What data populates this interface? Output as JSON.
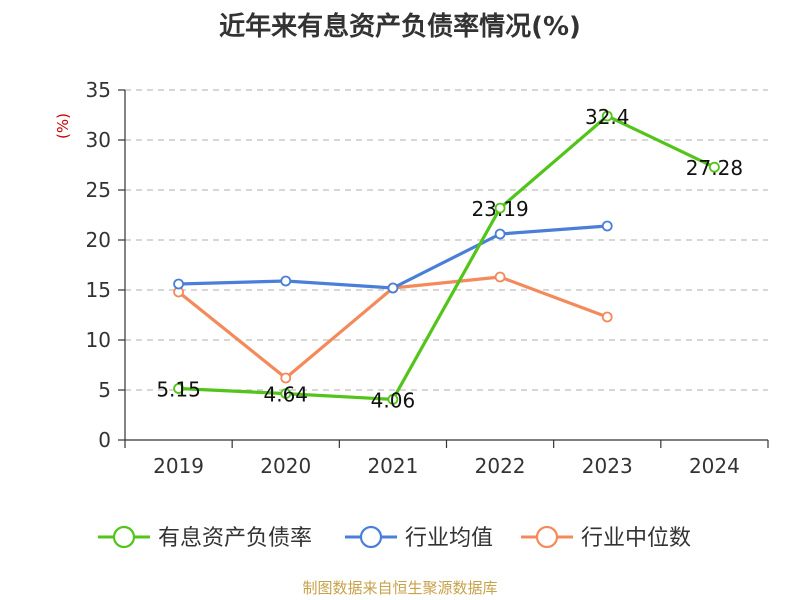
{
  "title": "近年来有息资产负债率情况(%)",
  "source": "制图数据来自恒生聚源数据库",
  "chart_data": {
    "type": "line",
    "title": "近年来有息资产负债率情况(%)",
    "ylabel": "(%)",
    "categories": [
      "2019",
      "2020",
      "2021",
      "2022",
      "2023",
      "2024"
    ],
    "ylim": [
      0,
      35
    ],
    "yticks": [
      0,
      5,
      10,
      15,
      20,
      25,
      30,
      35
    ],
    "grid": true,
    "legend_position": "bottom",
    "series": [
      {
        "name": "有息资产负债率",
        "color": "#52c41a",
        "values": [
          5.15,
          4.64,
          4.06,
          23.19,
          32.4,
          27.28
        ],
        "labels": [
          "5.15",
          "4.64",
          "4.06",
          "23.19",
          "32.4",
          "27.28"
        ]
      },
      {
        "name": "行业均值",
        "color": "#4a7fd9",
        "values": [
          15.6,
          15.9,
          15.2,
          20.6,
          21.4,
          null
        ]
      },
      {
        "name": "行业中位数",
        "color": "#f48a5c",
        "values": [
          14.8,
          6.2,
          15.2,
          16.3,
          12.3,
          null
        ]
      }
    ]
  }
}
